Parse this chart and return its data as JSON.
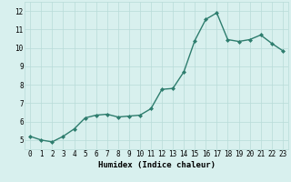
{
  "x": [
    0,
    1,
    2,
    3,
    4,
    5,
    6,
    7,
    8,
    9,
    10,
    11,
    12,
    13,
    14,
    15,
    16,
    17,
    18,
    19,
    20,
    21,
    22,
    23
  ],
  "y": [
    5.2,
    5.0,
    4.9,
    5.2,
    5.6,
    6.2,
    6.35,
    6.4,
    6.25,
    6.3,
    6.35,
    6.7,
    7.75,
    7.8,
    8.7,
    10.4,
    11.55,
    11.9,
    10.45,
    10.35,
    10.45,
    10.7,
    10.25,
    9.85
  ],
  "line_color": "#2e7d6e",
  "marker": "D",
  "marker_size": 2.0,
  "linewidth": 1.0,
  "bg_color": "#d8f0ee",
  "grid_color": "#b8dbd8",
  "xlabel": "Humidex (Indice chaleur)",
  "xlabel_fontsize": 6.5,
  "tick_fontsize": 5.5,
  "ylim": [
    4.5,
    12.5
  ],
  "xlim": [
    -0.5,
    23.5
  ],
  "yticks": [
    5,
    6,
    7,
    8,
    9,
    10,
    11,
    12
  ],
  "xticks": [
    0,
    1,
    2,
    3,
    4,
    5,
    6,
    7,
    8,
    9,
    10,
    11,
    12,
    13,
    14,
    15,
    16,
    17,
    18,
    19,
    20,
    21,
    22,
    23
  ]
}
